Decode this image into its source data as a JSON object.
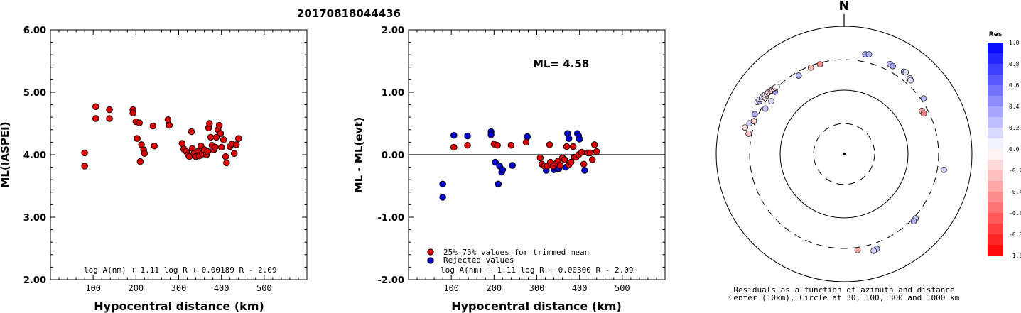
{
  "title": "20170818044436",
  "chart_data": [
    {
      "type": "scatter",
      "xlabel": "Hypocentral distance (km)",
      "ylabel": "ML(IASPEI)",
      "xlim": [
        0,
        600
      ],
      "ylim": [
        2.0,
        6.0
      ],
      "xticks": [
        "100",
        "200",
        "300",
        "400",
        "500"
      ],
      "yticks": [
        "2.00",
        "3.00",
        "4.00",
        "5.00",
        "6.00"
      ],
      "formula": "log A(nm) + 1.11 log R + 0.00189 R - 2.09",
      "marker_color": "#dd0000",
      "points": [
        [
          80,
          4.03
        ],
        [
          80,
          3.82
        ],
        [
          106,
          4.77
        ],
        [
          106,
          4.58
        ],
        [
          138,
          4.72
        ],
        [
          138,
          4.58
        ],
        [
          193,
          4.72
        ],
        [
          193,
          4.67
        ],
        [
          200,
          4.53
        ],
        [
          203,
          4.26
        ],
        [
          208,
          4.51
        ],
        [
          210,
          3.89
        ],
        [
          213,
          4.16
        ],
        [
          218,
          4.08
        ],
        [
          220,
          4.02
        ],
        [
          240,
          4.46
        ],
        [
          243,
          4.14
        ],
        [
          275,
          4.56
        ],
        [
          278,
          4.47
        ],
        [
          308,
          4.18
        ],
        [
          312,
          4.09
        ],
        [
          318,
          4.05
        ],
        [
          322,
          4.0
        ],
        [
          325,
          3.97
        ],
        [
          330,
          4.37
        ],
        [
          332,
          4.1
        ],
        [
          336,
          4.02
        ],
        [
          340,
          3.97
        ],
        [
          345,
          4.05
        ],
        [
          348,
          3.98
        ],
        [
          352,
          4.14
        ],
        [
          355,
          4.01
        ],
        [
          360,
          4.08
        ],
        [
          365,
          4.0
        ],
        [
          368,
          4.05
        ],
        [
          370,
          4.43
        ],
        [
          372,
          4.5
        ],
        [
          375,
          4.28
        ],
        [
          378,
          4.15
        ],
        [
          382,
          4.08
        ],
        [
          385,
          4.12
        ],
        [
          388,
          4.28
        ],
        [
          392,
          4.4
        ],
        [
          395,
          4.47
        ],
        [
          398,
          4.34
        ],
        [
          400,
          4.12
        ],
        [
          405,
          4.24
        ],
        [
          410,
          3.97
        ],
        [
          412,
          3.87
        ],
        [
          420,
          4.13
        ],
        [
          425,
          4.17
        ],
        [
          430,
          4.02
        ],
        [
          435,
          4.16
        ],
        [
          440,
          4.26
        ]
      ]
    },
    {
      "type": "scatter",
      "xlabel": "Hypocentral distance (km)",
      "ylabel": "ML - ML(evt)",
      "xlim": [
        0,
        600
      ],
      "ylim": [
        -2.0,
        2.0
      ],
      "xticks": [
        "100",
        "200",
        "300",
        "400",
        "500"
      ],
      "yticks": [
        "-2.00",
        "-1.00",
        "0.00",
        "1.00",
        "2.00"
      ],
      "annotation": "ML= 4.58",
      "formula": "log A(nm) + 1.11 log R + 0.00300 R - 2.09",
      "legend": [
        {
          "label": "25%-75% values for trimmed mean",
          "color": "#dd0000"
        },
        {
          "label": "Rejected values",
          "color": "#0000cc"
        }
      ],
      "points_trimmed": [
        [
          106,
          0.12
        ],
        [
          138,
          0.15
        ],
        [
          200,
          0.17
        ],
        [
          208,
          0.15
        ],
        [
          240,
          0.15
        ],
        [
          275,
          0.2
        ],
        [
          308,
          -0.05
        ],
        [
          312,
          -0.15
        ],
        [
          318,
          -0.18
        ],
        [
          325,
          -0.18
        ],
        [
          330,
          0.16
        ],
        [
          332,
          -0.12
        ],
        [
          338,
          -0.18
        ],
        [
          345,
          -0.14
        ],
        [
          350,
          -0.1
        ],
        [
          355,
          -0.17
        ],
        [
          360,
          -0.05
        ],
        [
          365,
          -0.08
        ],
        [
          370,
          0.13
        ],
        [
          375,
          -0.16
        ],
        [
          380,
          -0.12
        ],
        [
          385,
          0.13
        ],
        [
          388,
          -0.04
        ],
        [
          392,
          -0.04
        ],
        [
          398,
          0.0
        ],
        [
          405,
          0.04
        ],
        [
          410,
          -0.15
        ],
        [
          420,
          0.03
        ],
        [
          425,
          0.03
        ],
        [
          430,
          -0.08
        ],
        [
          435,
          0.16
        ],
        [
          440,
          0.05
        ]
      ],
      "points_rejected": [
        [
          80,
          -0.47
        ],
        [
          80,
          -0.68
        ],
        [
          106,
          0.31
        ],
        [
          138,
          0.3
        ],
        [
          193,
          0.37
        ],
        [
          193,
          0.32
        ],
        [
          203,
          -0.12
        ],
        [
          210,
          -0.47
        ],
        [
          213,
          -0.18
        ],
        [
          218,
          -0.28
        ],
        [
          220,
          -0.24
        ],
        [
          243,
          -0.17
        ],
        [
          278,
          0.29
        ],
        [
          322,
          -0.25
        ],
        [
          340,
          -0.24
        ],
        [
          348,
          -0.22
        ],
        [
          352,
          -0.22
        ],
        [
          368,
          -0.2
        ],
        [
          372,
          0.34
        ],
        [
          375,
          0.26
        ],
        [
          395,
          0.34
        ],
        [
          398,
          0.3
        ],
        [
          400,
          0.25
        ],
        [
          412,
          -0.25
        ]
      ]
    },
    {
      "type": "scatter",
      "subtype": "polar-residuals",
      "north_label": "N",
      "caption_line1": "Residuals as a function of azimuth and distance",
      "caption_line2": "Center (10km), Circle at 30, 100, 300 and 1000 km",
      "rings_km": [
        30,
        100,
        300,
        1000
      ],
      "colorbar_title": "Res",
      "colorbar_ticks": [
        "1.0",
        "0.8",
        "0.6",
        "0.4",
        "0.2",
        "0.0",
        "-0.2",
        "-0.4",
        "-0.6",
        "-0.8",
        "-1.0"
      ],
      "points": [
        {
          "az": 12,
          "d": 394,
          "res": 0.34
        },
        {
          "az": 14,
          "d": 406,
          "res": 0.3
        },
        {
          "az": 27,
          "d": 380,
          "res": 0.26
        },
        {
          "az": 29,
          "d": 375,
          "res": 0.34
        },
        {
          "az": 36,
          "d": 391,
          "res": 0.25
        },
        {
          "az": 37,
          "d": 400,
          "res": 0.12
        },
        {
          "az": 41,
          "d": 372,
          "res": 0.13
        },
        {
          "az": 42,
          "d": 358,
          "res": 0.13
        },
        {
          "az": 55,
          "d": 330,
          "res": 0.29
        },
        {
          "az": 61,
          "d": 246,
          "res": -0.33
        },
        {
          "az": 63,
          "d": 250,
          "res": -0.5
        },
        {
          "az": 99,
          "d": 380,
          "res": 0.2
        },
        {
          "az": 132,
          "d": 320,
          "res": 0.2
        },
        {
          "az": 134,
          "d": 326,
          "res": 0.3
        },
        {
          "az": 161,
          "d": 371,
          "res": 0.25
        },
        {
          "az": 163,
          "d": 383,
          "res": 0.2
        },
        {
          "az": 172,
          "d": 331,
          "res": -0.35
        },
        {
          "az": 330,
          "d": 262,
          "res": 0.3
        },
        {
          "az": 339,
          "d": 281,
          "res": -0.3
        },
        {
          "az": 345,
          "d": 284,
          "res": -0.45
        },
        {
          "az": 312,
          "d": 286,
          "res": 0.4
        },
        {
          "az": 306,
          "d": 255,
          "res": 0.15
        },
        {
          "az": 300,
          "d": 265,
          "res": 0.25
        },
        {
          "az": 285,
          "d": 402,
          "res": -0.12
        },
        {
          "az": 288,
          "d": 360,
          "res": 0.2
        },
        {
          "az": 301,
          "d": 380,
          "res": -0.05
        },
        {
          "az": 302,
          "d": 365,
          "res": 0.3
        },
        {
          "az": 303,
          "d": 375,
          "res": 0.18
        },
        {
          "az": 304,
          "d": 355,
          "res": -0.1
        },
        {
          "az": 305,
          "d": 362,
          "res": 0.25
        },
        {
          "az": 306,
          "d": 345,
          "res": -0.15
        },
        {
          "az": 307,
          "d": 352,
          "res": 0.05
        },
        {
          "az": 308,
          "d": 340,
          "res": -0.2
        },
        {
          "az": 309,
          "d": 338,
          "res": 0.1
        },
        {
          "az": 310,
          "d": 332,
          "res": -0.25
        },
        {
          "az": 311,
          "d": 328,
          "res": -0.1
        },
        {
          "az": 312,
          "d": 322,
          "res": -0.18
        },
        {
          "az": 313,
          "d": 318,
          "res": -0.08
        },
        {
          "az": 314,
          "d": 312,
          "res": -0.15
        },
        {
          "az": 315,
          "d": 308,
          "res": 0.05
        },
        {
          "az": 290,
          "d": 318,
          "res": -0.18
        },
        {
          "az": 282,
          "d": 336,
          "res": -0.25
        },
        {
          "az": 294,
          "d": 338,
          "res": 0.35
        }
      ]
    }
  ]
}
